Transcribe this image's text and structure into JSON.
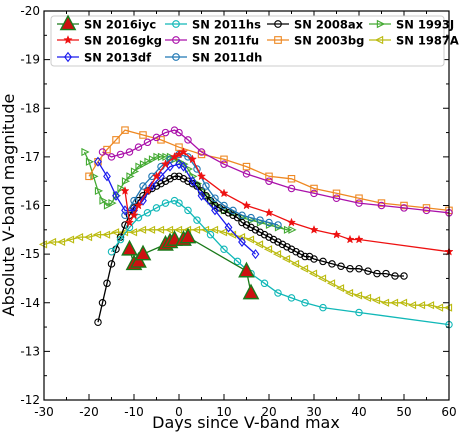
{
  "chart_data": {
    "type": "line",
    "xlabel": "Days since V-band max",
    "ylabel": "Absolute V-band magnitude",
    "xlim": [
      -30,
      60
    ],
    "ylim": [
      -20,
      -12
    ],
    "y_inverted": true,
    "xticks": [
      -30,
      -20,
      -10,
      0,
      10,
      20,
      30,
      40,
      50,
      60
    ],
    "yticks": [
      -20,
      -19,
      -18,
      -17,
      -16,
      -15,
      -14,
      -13,
      -12
    ],
    "grid": false,
    "legend_position": "top",
    "series": [
      {
        "name": "SN 2016iyc",
        "color": "#1a7a1a",
        "fill": "#cc1111",
        "marker": "triangle",
        "line": true,
        "points": [
          [
            -11,
            -15.1
          ],
          [
            -10,
            -14.8
          ],
          [
            -9,
            -14.85
          ],
          [
            -8,
            -15.0
          ],
          [
            -3,
            -15.2
          ],
          [
            -2,
            -15.25
          ],
          [
            -1,
            -15.3
          ],
          [
            1,
            -15.3
          ],
          [
            2,
            -15.35
          ],
          [
            15,
            -14.65
          ],
          [
            16,
            -14.2
          ]
        ]
      },
      {
        "name": "SN 2016gkg",
        "color": "#ee1111",
        "marker": "star",
        "line": true,
        "points": [
          [
            -12,
            -16.3
          ],
          [
            -11,
            -15.65
          ],
          [
            -10,
            -15.8
          ],
          [
            -9,
            -16.0
          ],
          [
            -7,
            -16.3
          ],
          [
            -5,
            -16.6
          ],
          [
            -3,
            -16.85
          ],
          [
            -1,
            -17.0
          ],
          [
            0,
            -17.05
          ],
          [
            1,
            -17.1
          ],
          [
            3,
            -16.95
          ],
          [
            5,
            -16.6
          ],
          [
            10,
            -16.25
          ],
          [
            15,
            -16.0
          ],
          [
            20,
            -15.85
          ],
          [
            25,
            -15.65
          ],
          [
            30,
            -15.5
          ],
          [
            35,
            -15.4
          ],
          [
            38,
            -15.3
          ],
          [
            40,
            -15.3
          ],
          [
            60,
            -15.05
          ]
        ]
      },
      {
        "name": "SN 2013df",
        "color": "#1a1aee",
        "marker": "diamond",
        "line": true,
        "points": [
          [
            -18,
            -16.9
          ],
          [
            -16,
            -16.6
          ],
          [
            -14,
            -16.2
          ],
          [
            -12,
            -15.9
          ],
          [
            -10,
            -15.9
          ],
          [
            -8,
            -16.1
          ],
          [
            -6,
            -16.4
          ],
          [
            -4,
            -16.6
          ],
          [
            -2,
            -16.8
          ],
          [
            0,
            -16.85
          ],
          [
            1,
            -16.8
          ],
          [
            3,
            -16.5
          ],
          [
            5,
            -16.2
          ],
          [
            8,
            -15.9
          ],
          [
            11,
            -15.55
          ],
          [
            14,
            -15.25
          ],
          [
            17,
            -15.0
          ]
        ]
      },
      {
        "name": "SN 2011hs",
        "color": "#11b8b8",
        "marker": "circle-open",
        "line": true,
        "points": [
          [
            -15,
            -15.05
          ],
          [
            -13,
            -15.3
          ],
          [
            -11,
            -15.55
          ],
          [
            -9,
            -15.75
          ],
          [
            -7,
            -15.85
          ],
          [
            -5,
            -15.95
          ],
          [
            -3,
            -16.05
          ],
          [
            -1,
            -16.1
          ],
          [
            0,
            -16.05
          ],
          [
            2,
            -15.9
          ],
          [
            4,
            -15.7
          ],
          [
            7,
            -15.4
          ],
          [
            10,
            -15.1
          ],
          [
            13,
            -14.85
          ],
          [
            16,
            -14.6
          ],
          [
            19,
            -14.4
          ],
          [
            22,
            -14.2
          ],
          [
            25,
            -14.1
          ],
          [
            28,
            -14.0
          ],
          [
            32,
            -13.9
          ],
          [
            40,
            -13.8
          ],
          [
            60,
            -13.55
          ]
        ]
      },
      {
        "name": "SN 2011fu",
        "color": "#aa11aa",
        "marker": "circle-open",
        "line": true,
        "points": [
          [
            -17,
            -17.1
          ],
          [
            -15,
            -17.0
          ],
          [
            -13,
            -17.05
          ],
          [
            -11,
            -17.1
          ],
          [
            -9,
            -17.2
          ],
          [
            -7,
            -17.3
          ],
          [
            -5,
            -17.4
          ],
          [
            -3,
            -17.5
          ],
          [
            -1,
            -17.55
          ],
          [
            0,
            -17.5
          ],
          [
            2,
            -17.35
          ],
          [
            5,
            -17.1
          ],
          [
            10,
            -16.85
          ],
          [
            15,
            -16.65
          ],
          [
            20,
            -16.5
          ],
          [
            25,
            -16.35
          ],
          [
            30,
            -16.25
          ],
          [
            35,
            -16.15
          ],
          [
            40,
            -16.05
          ],
          [
            45,
            -16.0
          ],
          [
            50,
            -15.95
          ],
          [
            55,
            -15.9
          ],
          [
            60,
            -15.85
          ]
        ]
      },
      {
        "name": "SN 2011dh",
        "color": "#1f77b4",
        "marker": "circle-open",
        "line": true,
        "points": [
          [
            -12,
            -15.8
          ],
          [
            -10,
            -16.1
          ],
          [
            -8,
            -16.4
          ],
          [
            -6,
            -16.6
          ],
          [
            -4,
            -16.8
          ],
          [
            -2,
            -16.95
          ],
          [
            0,
            -17.05
          ],
          [
            2,
            -17.0
          ],
          [
            4,
            -16.75
          ],
          [
            6,
            -16.4
          ],
          [
            8,
            -16.15
          ],
          [
            10,
            -16.0
          ],
          [
            12,
            -15.9
          ],
          [
            14,
            -15.8
          ],
          [
            16,
            -15.75
          ],
          [
            18,
            -15.7
          ],
          [
            20,
            -15.65
          ],
          [
            22,
            -15.6
          ]
        ]
      },
      {
        "name": "SN 2008ax",
        "color": "#000000",
        "marker": "circle-open",
        "line": true,
        "points": [
          [
            -18,
            -13.6
          ],
          [
            -17,
            -14.0
          ],
          [
            -16,
            -14.4
          ],
          [
            -15,
            -14.8
          ],
          [
            -14,
            -15.1
          ],
          [
            -13,
            -15.35
          ],
          [
            -12,
            -15.6
          ],
          [
            -11,
            -15.8
          ],
          [
            -10,
            -15.95
          ],
          [
            -9,
            -16.1
          ],
          [
            -8,
            -16.2
          ],
          [
            -7,
            -16.3
          ],
          [
            -6,
            -16.35
          ],
          [
            -5,
            -16.4
          ],
          [
            -4,
            -16.45
          ],
          [
            -3,
            -16.5
          ],
          [
            -2,
            -16.55
          ],
          [
            -1,
            -16.6
          ],
          [
            0,
            -16.6
          ],
          [
            1,
            -16.55
          ],
          [
            2,
            -16.5
          ],
          [
            3,
            -16.45
          ],
          [
            4,
            -16.4
          ],
          [
            5,
            -16.3
          ],
          [
            6,
            -16.2
          ],
          [
            7,
            -16.1
          ],
          [
            8,
            -16.0
          ],
          [
            9,
            -15.95
          ],
          [
            10,
            -15.9
          ],
          [
            11,
            -15.85
          ],
          [
            12,
            -15.8
          ],
          [
            13,
            -15.75
          ],
          [
            14,
            -15.65
          ],
          [
            15,
            -15.6
          ],
          [
            16,
            -15.55
          ],
          [
            17,
            -15.5
          ],
          [
            18,
            -15.45
          ],
          [
            19,
            -15.4
          ],
          [
            20,
            -15.35
          ],
          [
            21,
            -15.3
          ],
          [
            22,
            -15.25
          ],
          [
            23,
            -15.2
          ],
          [
            24,
            -15.15
          ],
          [
            25,
            -15.1
          ],
          [
            26,
            -15.05
          ],
          [
            27,
            -15.0
          ],
          [
            28,
            -14.95
          ],
          [
            29,
            -14.95
          ],
          [
            30,
            -14.9
          ],
          [
            32,
            -14.85
          ],
          [
            34,
            -14.8
          ],
          [
            36,
            -14.75
          ],
          [
            38,
            -14.7
          ],
          [
            40,
            -14.7
          ],
          [
            42,
            -14.65
          ],
          [
            44,
            -14.6
          ],
          [
            46,
            -14.6
          ],
          [
            48,
            -14.55
          ],
          [
            50,
            -14.55
          ]
        ]
      },
      {
        "name": "SN 2003bg",
        "color": "#ee8822",
        "marker": "square-open",
        "line": true,
        "points": [
          [
            -20,
            -16.6
          ],
          [
            -18,
            -16.9
          ],
          [
            -16,
            -17.15
          ],
          [
            -14,
            -17.35
          ],
          [
            -12,
            -17.55
          ],
          [
            -8,
            -17.45
          ],
          [
            -4,
            -17.35
          ],
          [
            0,
            -17.2
          ],
          [
            5,
            -17.05
          ],
          [
            10,
            -16.95
          ],
          [
            15,
            -16.8
          ],
          [
            20,
            -16.6
          ],
          [
            25,
            -16.55
          ],
          [
            30,
            -16.35
          ],
          [
            35,
            -16.25
          ],
          [
            40,
            -16.15
          ],
          [
            45,
            -16.05
          ],
          [
            50,
            -16.0
          ],
          [
            55,
            -15.95
          ],
          [
            60,
            -15.9
          ]
        ]
      },
      {
        "name": "SN 1993J",
        "color": "#44aa33",
        "marker": "triangle-right-open",
        "line": true,
        "points": [
          [
            -21,
            -17.1
          ],
          [
            -20,
            -16.9
          ],
          [
            -19,
            -16.6
          ],
          [
            -18,
            -16.3
          ],
          [
            -17,
            -16.1
          ],
          [
            -16,
            -16.0
          ],
          [
            -15,
            -16.05
          ],
          [
            -14,
            -16.2
          ],
          [
            -13,
            -16.35
          ],
          [
            -12,
            -16.5
          ],
          [
            -11,
            -16.6
          ],
          [
            -10,
            -16.7
          ],
          [
            -9,
            -16.8
          ],
          [
            -8,
            -16.85
          ],
          [
            -7,
            -16.9
          ],
          [
            -6,
            -16.95
          ],
          [
            -5,
            -17.0
          ],
          [
            -4,
            -17.0
          ],
          [
            -3,
            -17.0
          ],
          [
            -2,
            -17.0
          ],
          [
            -1,
            -16.95
          ],
          [
            0,
            -16.9
          ],
          [
            1,
            -16.85
          ],
          [
            2,
            -16.75
          ],
          [
            3,
            -16.6
          ],
          [
            4,
            -16.45
          ],
          [
            5,
            -16.3
          ],
          [
            6,
            -16.2
          ],
          [
            7,
            -16.1
          ],
          [
            8,
            -16.0
          ],
          [
            9,
            -15.95
          ],
          [
            10,
            -15.9
          ],
          [
            12,
            -15.85
          ],
          [
            14,
            -15.75
          ],
          [
            16,
            -15.7
          ],
          [
            18,
            -15.65
          ],
          [
            20,
            -15.6
          ],
          [
            22,
            -15.55
          ],
          [
            24,
            -15.5
          ],
          [
            25,
            -15.5
          ]
        ]
      },
      {
        "name": "SN 1987A",
        "color": "#bbbb11",
        "marker": "triangle-left-open",
        "line": true,
        "points": [
          [
            -30,
            -15.2
          ],
          [
            -28,
            -15.25
          ],
          [
            -26,
            -15.25
          ],
          [
            -24,
            -15.3
          ],
          [
            -22,
            -15.35
          ],
          [
            -20,
            -15.35
          ],
          [
            -18,
            -15.4
          ],
          [
            -16,
            -15.4
          ],
          [
            -14,
            -15.45
          ],
          [
            -12,
            -15.45
          ],
          [
            -10,
            -15.45
          ],
          [
            -8,
            -15.5
          ],
          [
            -6,
            -15.5
          ],
          [
            -4,
            -15.5
          ],
          [
            -2,
            -15.5
          ],
          [
            0,
            -15.5
          ],
          [
            2,
            -15.5
          ],
          [
            4,
            -15.5
          ],
          [
            6,
            -15.5
          ],
          [
            8,
            -15.5
          ],
          [
            10,
            -15.45
          ],
          [
            12,
            -15.4
          ],
          [
            14,
            -15.35
          ],
          [
            16,
            -15.3
          ],
          [
            18,
            -15.2
          ],
          [
            20,
            -15.1
          ],
          [
            22,
            -15.0
          ],
          [
            24,
            -14.9
          ],
          [
            26,
            -14.8
          ],
          [
            28,
            -14.7
          ],
          [
            30,
            -14.6
          ],
          [
            32,
            -14.5
          ],
          [
            34,
            -14.4
          ],
          [
            36,
            -14.3
          ],
          [
            38,
            -14.2
          ],
          [
            40,
            -14.15
          ],
          [
            42,
            -14.1
          ],
          [
            44,
            -14.05
          ],
          [
            46,
            -14.0
          ],
          [
            48,
            -14.0
          ],
          [
            50,
            -14.0
          ],
          [
            52,
            -13.95
          ],
          [
            54,
            -13.95
          ],
          [
            56,
            -13.95
          ],
          [
            58,
            -13.9
          ],
          [
            60,
            -13.9
          ]
        ]
      }
    ]
  }
}
